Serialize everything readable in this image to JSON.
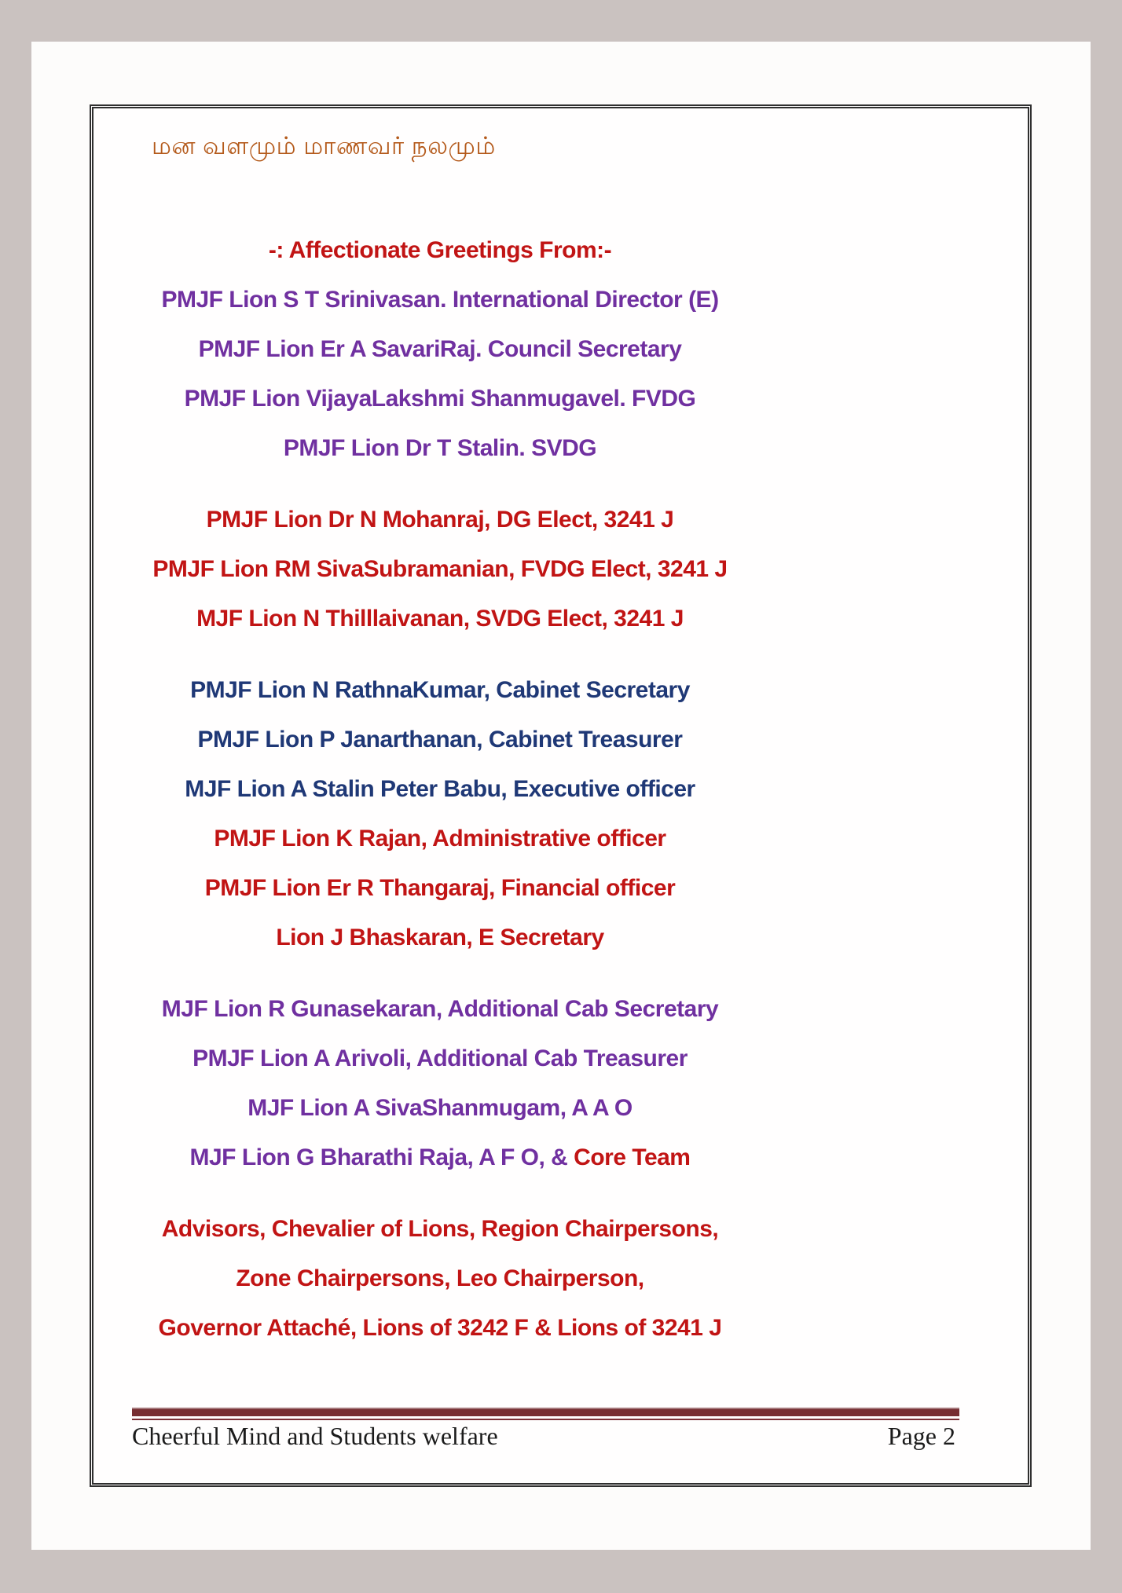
{
  "colors": {
    "red": "#c11414",
    "purple": "#7030a0",
    "blue": "#1f3876",
    "header_orange": "#b45a1b",
    "rule_maroon": "#772e32",
    "footer_text": "#1b1b1b",
    "page_background": "#ffffff",
    "canvas_background": "#cac2c0",
    "frame_border": "#2f2f2f"
  },
  "header": {
    "tamil_title": "மன வளமும் மாணவர் நலமும்"
  },
  "content": {
    "sections": [
      {
        "lines": [
          {
            "segments": [
              {
                "text": "-: Affectionate Greetings From:-",
                "color": "red"
              }
            ]
          },
          {
            "segments": [
              {
                "text": "PMJF Lion S T Srinivasan. International Director (E)",
                "color": "purple"
              }
            ]
          },
          {
            "segments": [
              {
                "text": "PMJF Lion Er A SavariRaj. Council Secretary",
                "color": "purple"
              }
            ]
          },
          {
            "segments": [
              {
                "text": "PMJF Lion VijayaLakshmi Shanmugavel. FVDG",
                "color": "purple"
              }
            ]
          },
          {
            "segments": [
              {
                "text": "PMJF Lion Dr T Stalin. SVDG",
                "color": "purple"
              }
            ]
          }
        ]
      },
      {
        "lines": [
          {
            "segments": [
              {
                "text": "PMJF Lion Dr N Mohanraj, DG Elect, 3241 J",
                "color": "red"
              }
            ]
          },
          {
            "segments": [
              {
                "text": "PMJF Lion RM SivaSubramanian, FVDG Elect, 3241 J",
                "color": "red"
              }
            ]
          },
          {
            "segments": [
              {
                "text": "MJF Lion N Thilllaivanan, SVDG Elect, 3241 J",
                "color": "red"
              }
            ]
          }
        ]
      },
      {
        "lines": [
          {
            "segments": [
              {
                "text": "PMJF Lion N RathnaKumar, Cabinet Secretary",
                "color": "blue"
              }
            ]
          },
          {
            "segments": [
              {
                "text": "PMJF Lion P Janarthanan, Cabinet Treasurer",
                "color": "blue"
              }
            ]
          },
          {
            "segments": [
              {
                "text": "MJF Lion A Stalin Peter Babu, Executive officer",
                "color": "blue"
              }
            ]
          },
          {
            "segments": [
              {
                "text": "PMJF Lion K Rajan, Administrative officer",
                "color": "red"
              }
            ]
          },
          {
            "segments": [
              {
                "text": "PMJF Lion Er R Thangaraj, Financial officer",
                "color": "red"
              }
            ]
          },
          {
            "segments": [
              {
                "text": "Lion J Bhaskaran, E Secretary",
                "color": "red"
              }
            ]
          }
        ]
      },
      {
        "lines": [
          {
            "segments": [
              {
                "text": "MJF Lion R Gunasekaran, Additional Cab Secretary",
                "color": "purple"
              }
            ]
          },
          {
            "segments": [
              {
                "text": "PMJF Lion A Arivoli, Additional Cab Treasurer",
                "color": "purple"
              }
            ]
          },
          {
            "segments": [
              {
                "text": "MJF Lion A SivaShanmugam, A A O",
                "color": "purple"
              }
            ]
          },
          {
            "segments": [
              {
                "text": "MJF Lion G Bharathi Raja, A F O, & ",
                "color": "purple"
              },
              {
                "text": "Core Team",
                "color": "red"
              }
            ]
          }
        ]
      },
      {
        "lines": [
          {
            "segments": [
              {
                "text": "Advisors, Chevalier of Lions, Region Chairpersons,",
                "color": "red"
              }
            ]
          },
          {
            "segments": [
              {
                "text": "Zone Chairpersons, Leo Chairperson,",
                "color": "red"
              }
            ]
          },
          {
            "segments": [
              {
                "text": "Governor Attaché, Lions of 3242 F & Lions of 3241 J",
                "color": "red"
              }
            ]
          }
        ]
      }
    ]
  },
  "footer": {
    "left_text": "Cheerful Mind and Students welfare",
    "page_label": "Page 2"
  }
}
